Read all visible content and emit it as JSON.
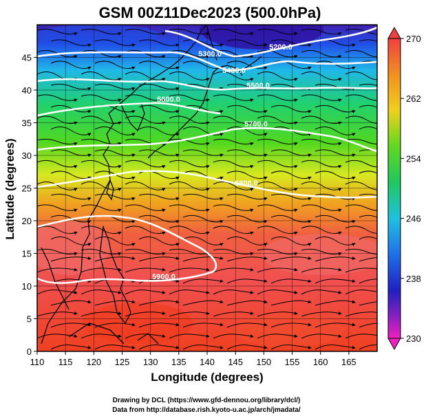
{
  "title": "GSM 00Z11Dec2023 (500.0hPa)",
  "xlabel": "Longitude (degrees)",
  "ylabel": "Latitude  (degrees)",
  "credit_line1": "Drawing by DCL (https://www.gfd-dennou.org/library/dcl/)",
  "credit_line2": "Data from http://database.rish.kyoto-u.ac.jp/arch/jmadata/",
  "map": {
    "lon_range": [
      110,
      170
    ],
    "lat_range": [
      0,
      50
    ],
    "x_ticks": [
      "110",
      "115",
      "120",
      "125",
      "130",
      "135",
      "140",
      "145",
      "150",
      "155",
      "160",
      "165"
    ],
    "y_ticks": [
      "0",
      "5",
      "10",
      "15",
      "20",
      "25",
      "30",
      "35",
      "40",
      "45"
    ],
    "x_tick_values": [
      110,
      115,
      120,
      125,
      130,
      135,
      140,
      145,
      150,
      155,
      160,
      165
    ],
    "y_tick_values": [
      0,
      5,
      10,
      15,
      20,
      25,
      30,
      35,
      40,
      45
    ],
    "grid": true
  },
  "colorbar": {
    "min": 230,
    "max": 270,
    "tick_labels": [
      "270",
      "262",
      "254",
      "246",
      "238",
      "230"
    ],
    "tick_values": [
      270,
      262,
      254,
      246,
      238,
      230
    ]
  },
  "contours": [
    {
      "label": "5200.0",
      "lat": 47
    },
    {
      "label": "5300.0",
      "lat": 45
    },
    {
      "label": "5400.0",
      "lat": 43
    },
    {
      "label": "5500.0",
      "lat": 41
    },
    {
      "label": "5600.0",
      "lat": 40
    },
    {
      "label": "5700.0",
      "lat": 35
    },
    {
      "label": "5800.0",
      "lat": 28
    },
    {
      "label": "5900.0",
      "lat": 14
    }
  ],
  "colors": {
    "contour": "#ffffff",
    "streamline": "#000000",
    "coastline": "#000000"
  }
}
